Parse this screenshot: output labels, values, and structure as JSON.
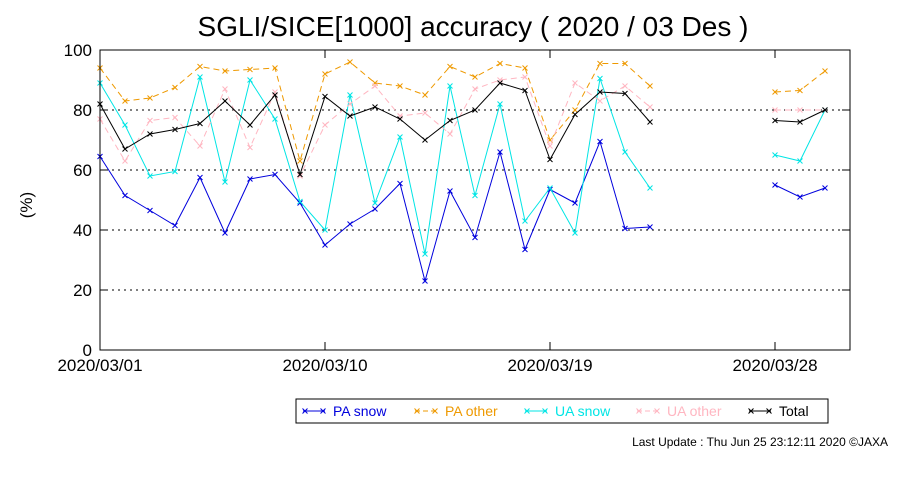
{
  "chart_data": {
    "type": "line",
    "title": "SGLI/SICE[1000] accuracy ( 2020 / 03 Des )",
    "ylabel": "(%)",
    "xlabel": "",
    "xlim": [
      "2020/03/01",
      "2020/03/31"
    ],
    "ylim": [
      0,
      100
    ],
    "yticks": [
      0,
      20,
      40,
      60,
      80,
      100
    ],
    "xticks": [
      {
        "date": "2020/03/01",
        "label": "2020/03/01"
      },
      {
        "date": "2020/03/10",
        "label": "2020/03/10"
      },
      {
        "date": "2020/03/19",
        "label": "2020/03/19"
      },
      {
        "date": "2020/03/28",
        "label": "2020/03/28"
      }
    ],
    "grid": "dotted horizontal at 20, 40, 60, 80",
    "legend_position": "bottom-right",
    "x": [
      "2020/03/01",
      "2020/03/02",
      "2020/03/03",
      "2020/03/04",
      "2020/03/05",
      "2020/03/06",
      "2020/03/07",
      "2020/03/08",
      "2020/03/09",
      "2020/03/10",
      "2020/03/11",
      "2020/03/12",
      "2020/03/13",
      "2020/03/14",
      "2020/03/15",
      "2020/03/16",
      "2020/03/17",
      "2020/03/18",
      "2020/03/19",
      "2020/03/20",
      "2020/03/21",
      "2020/03/22",
      "2020/03/23",
      "2020/03/24",
      "2020/03/25",
      "2020/03/26",
      "2020/03/27",
      "2020/03/28",
      "2020/03/29",
      "2020/03/30",
      "2020/03/31"
    ],
    "series": [
      {
        "name": "PA snow",
        "color": "#0000dd",
        "dash": "solid",
        "values": [
          64.5,
          51.5,
          46.5,
          41.5,
          57.5,
          39,
          57,
          58.5,
          49,
          35,
          42,
          47,
          55.5,
          23,
          53,
          37.5,
          66,
          33.5,
          53.5,
          49,
          69.5,
          40.5,
          41,
          null,
          null,
          null,
          null,
          55,
          51,
          54,
          null
        ]
      },
      {
        "name": "PA other",
        "color": "#ee9900",
        "dash": "dashed",
        "values": [
          94,
          83,
          84,
          87.5,
          94.5,
          93,
          93.5,
          94,
          63,
          92,
          96,
          89,
          88,
          85,
          94.5,
          91,
          95.5,
          94,
          70,
          80,
          95.5,
          95.5,
          88,
          null,
          null,
          null,
          null,
          86,
          86.5,
          93,
          null
        ]
      },
      {
        "name": "UA snow",
        "color": "#00e5e5",
        "dash": "solid",
        "values": [
          89,
          75,
          58,
          59.5,
          91,
          56,
          90,
          77,
          49.5,
          40,
          85,
          49,
          71,
          32,
          88,
          51.5,
          82,
          43,
          54,
          39,
          90.5,
          66,
          54,
          null,
          null,
          null,
          null,
          65,
          63,
          80,
          null
        ]
      },
      {
        "name": "UA other",
        "color": "#ffb6c1",
        "dash": "dashed",
        "values": [
          77,
          63,
          76.5,
          77.5,
          68,
          87,
          67.5,
          86,
          58,
          75,
          82,
          88,
          78,
          79,
          72,
          87,
          90,
          91,
          68,
          89,
          83,
          88,
          81,
          null,
          null,
          null,
          null,
          80,
          80,
          80,
          null
        ]
      },
      {
        "name": "Total",
        "color": "#000000",
        "dash": "solid",
        "values": [
          82,
          67,
          72,
          73.5,
          75.5,
          83,
          75,
          85,
          58.5,
          84.5,
          78,
          81,
          77,
          70,
          76.5,
          80,
          89,
          86.5,
          63.5,
          78.5,
          86,
          85.5,
          76,
          null,
          null,
          null,
          null,
          76.5,
          76,
          80,
          null
        ]
      }
    ]
  },
  "footer": {
    "last_update": "Last Update : Thu Jun 25 23:12:11 2020  ©JAXA"
  }
}
